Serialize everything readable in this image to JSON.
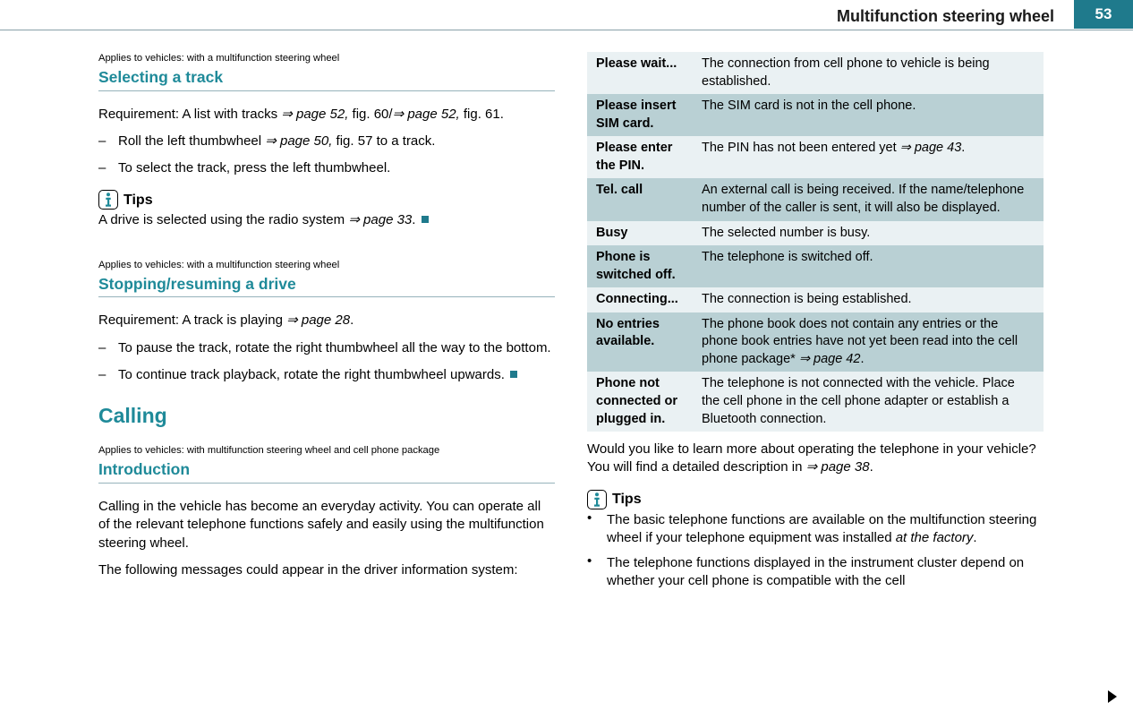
{
  "header": {
    "title": "Multifunction steering wheel",
    "page_number": "53"
  },
  "left": {
    "sec1": {
      "applies": "Applies to vehicles: with a multifunction steering wheel",
      "title": "Selecting a track",
      "req_a": "Requirement: A list with tracks ",
      "req_ref1": "⇒ page 52,",
      "req_b": " fig. 60/",
      "req_ref2": "⇒ page 52,",
      "req_c": " fig. 61.",
      "item1_a": "Roll the left thumbwheel ",
      "item1_ref": "⇒ page 50,",
      "item1_b": " fig. 57 to a track.",
      "item2": "To select the track, press the left thumbwheel.",
      "tips_label": "Tips",
      "tips_text_a": "A drive is selected using the radio system ",
      "tips_ref": "⇒ page 33"
    },
    "sec2": {
      "applies": "Applies to vehicles: with a multifunction steering wheel",
      "title": "Stopping/resuming a drive",
      "req_a": "Requirement: A track is playing ",
      "req_ref": "⇒ page 28",
      "item1": "To pause the track, rotate the right thumbwheel all the way to the bottom.",
      "item2": "To continue track playback, rotate the right thumbwheel upwards."
    },
    "calling": "Calling",
    "sec3": {
      "applies": "Applies to vehicles: with multifunction steering wheel and cell phone package",
      "title": "Introduction",
      "p1": "Calling in the vehicle has become an everyday activity. You can operate all of the relevant telephone functions safely and easily using the multifunction steering wheel.",
      "p2": "The following messages could appear in the driver information system:"
    }
  },
  "right": {
    "rows": [
      {
        "shade": "light",
        "k": "Please wait...",
        "v": "The connection from cell phone to vehicle is being established."
      },
      {
        "shade": "dark",
        "k": "Please insert SIM card.",
        "v": "The SIM card is not in the cell phone."
      },
      {
        "shade": "light",
        "k": "Please enter the PIN.",
        "v_a": "The PIN has not been entered yet ",
        "v_ref": "⇒ page 43",
        "v_b": "."
      },
      {
        "shade": "dark",
        "k": "Tel. call",
        "v": "An external call is being received. If the name/telephone number of the caller is sent, it will also be displayed."
      },
      {
        "shade": "light",
        "k": "Busy",
        "v": "The selected number is busy."
      },
      {
        "shade": "dark",
        "k": "Phone is switched off.",
        "v": "The telephone is switched off."
      },
      {
        "shade": "light",
        "k": "Connecting...",
        "v": "The connection is being established."
      },
      {
        "shade": "dark",
        "k": "No entries available.",
        "v_a": "The phone book does not contain any entries or the phone book entries have not yet been read into the cell phone package* ",
        "v_ref": "⇒ page 42",
        "v_b": "."
      },
      {
        "shade": "light",
        "k": "Phone not connected or plugged in.",
        "v": "The telephone is not connected with the vehicle. Place the cell phone in the cell phone adapter or establish a Bluetooth connection."
      }
    ],
    "after_a": "Would you like to learn more about operating the telephone in your vehicle? You will find a detailed description in ",
    "after_ref": "⇒ page 38",
    "after_b": ".",
    "tips_label": "Tips",
    "b1_a": "The basic telephone functions are available on the multifunction steering wheel if your telephone equipment was installed ",
    "b1_i": "at the factory",
    "b1_b": ".",
    "b2": "The telephone functions displayed in the instrument cluster depend on whether your cell phone is compatible with the cell"
  }
}
